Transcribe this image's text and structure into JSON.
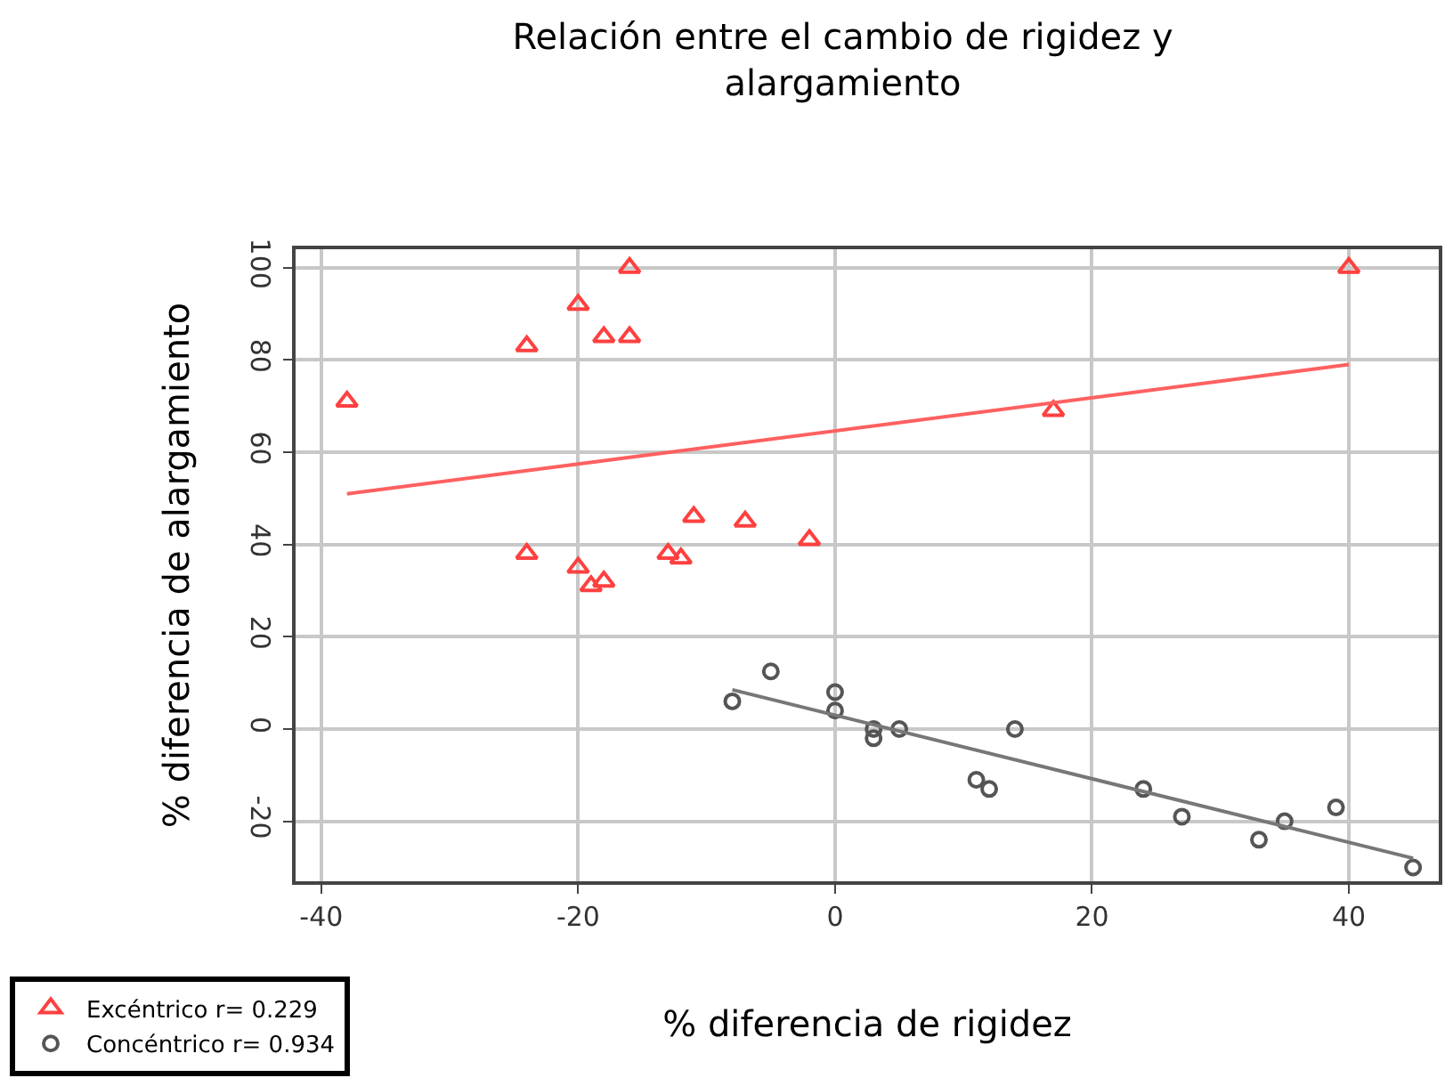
{
  "chart_data": {
    "type": "scatter",
    "title": "Relación entre el cambio de rigidez y\nalargamiento",
    "xlabel": "% diferencia de rigidez",
    "ylabel": "% diferencia de alargamiento",
    "xlim": [
      -42,
      47
    ],
    "ylim": [
      -33,
      104
    ],
    "xticks": [
      -40,
      -20,
      0,
      20,
      40
    ],
    "yticks": [
      -20,
      0,
      20,
      40,
      60,
      80,
      100
    ],
    "grid": true,
    "legend": "bottom left",
    "series": [
      {
        "name": "Excéntrico r= 0.229",
        "color": "#ff4040",
        "marker": "triangle",
        "x": [
          -38,
          -24,
          -20,
          -18,
          -16,
          -16,
          -24,
          -20,
          -19,
          -18,
          -13,
          -12,
          -11,
          -7,
          -2,
          17,
          40
        ],
        "values": [
          71,
          83,
          92,
          85,
          85,
          100,
          38,
          35,
          31,
          32,
          38,
          37,
          46,
          45,
          41,
          69,
          100
        ]
      },
      {
        "name": "Concéntrico r= 0.934",
        "color": "#555555",
        "marker": "circle",
        "x": [
          -8,
          -5,
          0,
          0,
          3,
          3,
          5,
          14,
          11,
          12,
          24,
          27,
          33,
          35,
          39,
          45
        ],
        "values": [
          6,
          12.5,
          8,
          4,
          0,
          -2,
          0,
          0,
          -11,
          -13,
          -13,
          -19,
          -24,
          -20,
          -17,
          -30
        ]
      },
      {
        "type": "line",
        "color": "#ff6060",
        "x": [
          -38,
          40
        ],
        "values": [
          51,
          79
        ]
      },
      {
        "type": "line",
        "color": "#777777",
        "x": [
          -8,
          45
        ],
        "values": [
          8.5,
          -28
        ]
      }
    ]
  }
}
